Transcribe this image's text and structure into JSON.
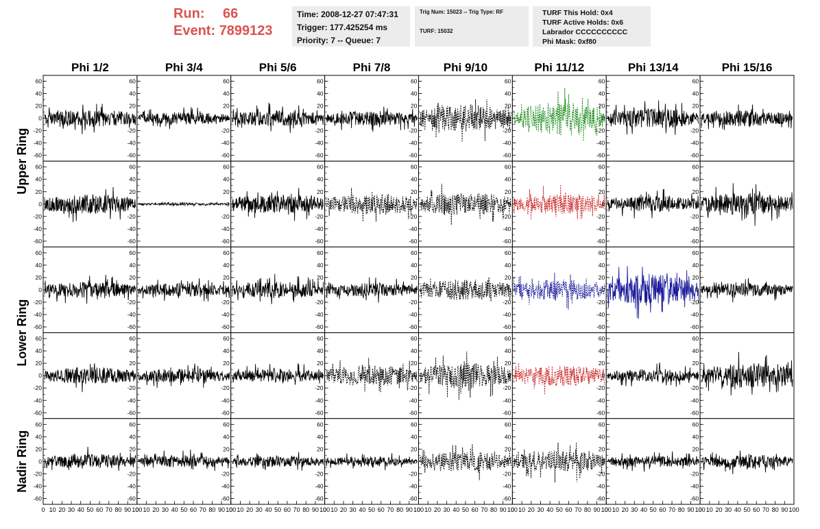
{
  "header": {
    "run_label": "Run:",
    "run_value": "66",
    "event_label": "Event:",
    "event_value": "7899123",
    "time_line": "Time: 2008-12-27 07:47:31",
    "trigger_line": "Trigger: 177.425254 ms",
    "priority_line": "Priority: 7 -- Queue: 7",
    "trig_line": "Trig Num: 15023 -- Trig Type: RF",
    "turf_line": "TURF: 15032",
    "turf_this_hold": "TURF This Hold: 0x4",
    "turf_active_holds": "TURF Active Holds: 0x6",
    "labrador": "Labrador CCCCCCCCCC",
    "phi_mask": "Phi Mask: 0xf80"
  },
  "chart_data": {
    "type": "line",
    "columns": [
      "Phi 1/2",
      "Phi 3/4",
      "Phi 5/6",
      "Phi 7/8",
      "Phi 9/10",
      "Phi 11/12",
      "Phi 13/14",
      "Phi 15/16"
    ],
    "row_groups": [
      {
        "label": "Upper Ring",
        "rows": [
          0,
          1
        ]
      },
      {
        "label": "Lower Ring",
        "rows": [
          2,
          3
        ]
      },
      {
        "label": "Nadir Ring",
        "rows": [
          4
        ]
      }
    ],
    "ylim": [
      -65,
      65
    ],
    "yticks": [
      -60,
      -40,
      -20,
      0,
      20,
      40,
      60
    ],
    "xlim": [
      0,
      100
    ],
    "xticks": [
      0,
      10,
      20,
      30,
      40,
      50,
      60,
      70,
      80,
      90,
      100
    ],
    "n_samples": 260,
    "colors": {
      "default": "#000000",
      "green": "#1a8a1a",
      "red": "#c82020",
      "blue": "#1a1a9a"
    },
    "panels": [
      [
        {
          "amp": 14,
          "style": "solid",
          "color": "default"
        },
        {
          "amp": 10,
          "style": "solid",
          "color": "default"
        },
        {
          "amp": 13,
          "style": "solid",
          "color": "default"
        },
        {
          "amp": 12,
          "style": "solid",
          "color": "default"
        },
        {
          "amp": 22,
          "style": "dashed",
          "color": "default"
        },
        {
          "amp": 26,
          "style": "dashed",
          "color": "green"
        },
        {
          "amp": 16,
          "style": "solid",
          "color": "default"
        },
        {
          "amp": 13,
          "style": "solid",
          "color": "default"
        }
      ],
      [
        {
          "amp": 16,
          "style": "solid",
          "color": "default"
        },
        {
          "amp": 2,
          "style": "solid",
          "color": "default"
        },
        {
          "amp": 16,
          "style": "solid",
          "color": "default"
        },
        {
          "amp": 17,
          "style": "dashed",
          "color": "default"
        },
        {
          "amp": 19,
          "style": "dashed",
          "color": "default"
        },
        {
          "amp": 16,
          "style": "dashed",
          "color": "red"
        },
        {
          "amp": 13,
          "style": "solid",
          "color": "default"
        },
        {
          "amp": 18,
          "style": "solid",
          "color": "default"
        }
      ],
      [
        {
          "amp": 13,
          "style": "solid",
          "color": "default"
        },
        {
          "amp": 11,
          "style": "solid",
          "color": "default"
        },
        {
          "amp": 13,
          "style": "solid",
          "color": "default"
        },
        {
          "amp": 11,
          "style": "solid",
          "color": "default"
        },
        {
          "amp": 17,
          "style": "dashed",
          "color": "default"
        },
        {
          "amp": 17,
          "style": "dashed",
          "color": "blue"
        },
        {
          "amp": 26,
          "style": "solid",
          "color": "blue"
        },
        {
          "amp": 11,
          "style": "solid",
          "color": "default"
        }
      ],
      [
        {
          "amp": 14,
          "style": "solid",
          "color": "default"
        },
        {
          "amp": 12,
          "style": "solid",
          "color": "default"
        },
        {
          "amp": 11,
          "style": "solid",
          "color": "default"
        },
        {
          "amp": 17,
          "style": "dashed",
          "color": "default"
        },
        {
          "amp": 21,
          "style": "dashed",
          "color": "default"
        },
        {
          "amp": 17,
          "style": "dashed",
          "color": "red"
        },
        {
          "amp": 11,
          "style": "solid",
          "color": "default"
        },
        {
          "amp": 20,
          "style": "solid",
          "color": "default"
        }
      ],
      [
        {
          "amp": 12,
          "style": "solid",
          "color": "default"
        },
        {
          "amp": 10,
          "style": "solid",
          "color": "default"
        },
        {
          "amp": 9,
          "style": "solid",
          "color": "default"
        },
        {
          "amp": 8,
          "style": "solid",
          "color": "default"
        },
        {
          "amp": 16,
          "style": "dashed",
          "color": "default"
        },
        {
          "amp": 18,
          "style": "dashed",
          "color": "default"
        },
        {
          "amp": 9,
          "style": "solid",
          "color": "default"
        },
        {
          "amp": 11,
          "style": "solid",
          "color": "default"
        }
      ]
    ]
  }
}
